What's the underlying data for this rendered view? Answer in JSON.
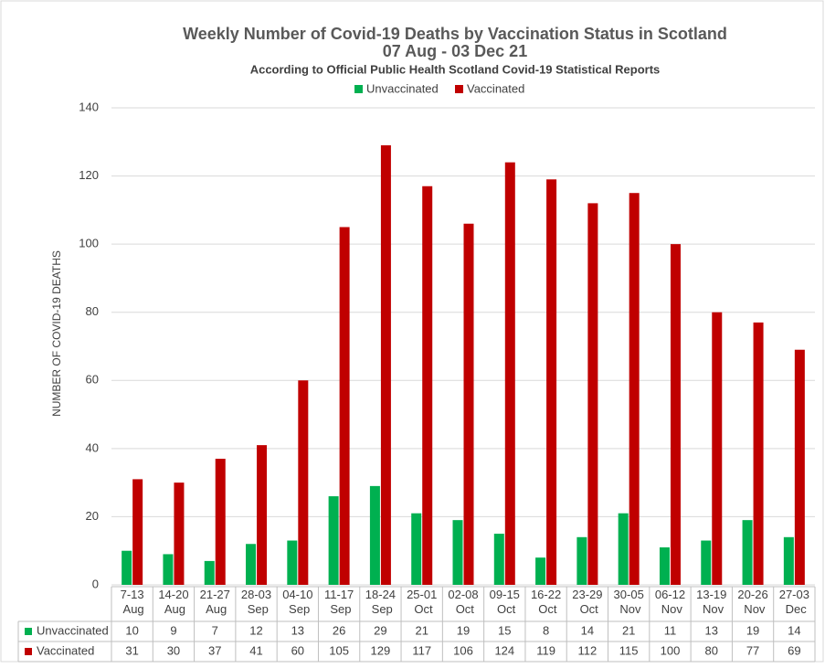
{
  "chart_data": {
    "type": "bar",
    "title": "Weekly Number of Covid-19 Deaths by Vaccination Status in Scotland",
    "subtitle": "07 Aug - 03 Dec 21",
    "note": "According to Official  Public Health Scotland Covid-19 Statistical Reports",
    "y_label": "NUMBER OF COVID-19 DEATHS",
    "categories": [
      "7-13\nAug",
      "14-20\nAug",
      "21-27\nAug",
      "28-03\nSep",
      "04-10\nSep",
      "11-17\nSep",
      "18-24\nSep",
      "25-01\nOct",
      "02-08\nOct",
      "09-15\nOct",
      "16-22\nOct",
      "23-29\nOct",
      "30-05\nNov",
      "06-12\nNov",
      "13-19\nNov",
      "20-26\nNov",
      "27-03\nDec"
    ],
    "series": [
      {
        "name": "Unvaccinated",
        "color": "#00b050",
        "values": [
          10,
          9,
          7,
          12,
          13,
          26,
          29,
          21,
          19,
          15,
          8,
          14,
          21,
          11,
          13,
          19,
          14
        ]
      },
      {
        "name": "Vaccinated",
        "color": "#c00000",
        "values": [
          31,
          30,
          37,
          41,
          60,
          105,
          129,
          117,
          106,
          124,
          119,
          112,
          115,
          100,
          80,
          77,
          69
        ]
      }
    ],
    "ylim": [
      0,
      140
    ],
    "yticks": [
      0,
      20,
      40,
      60,
      80,
      100,
      120,
      140
    ],
    "grid": true,
    "legend": "top"
  }
}
